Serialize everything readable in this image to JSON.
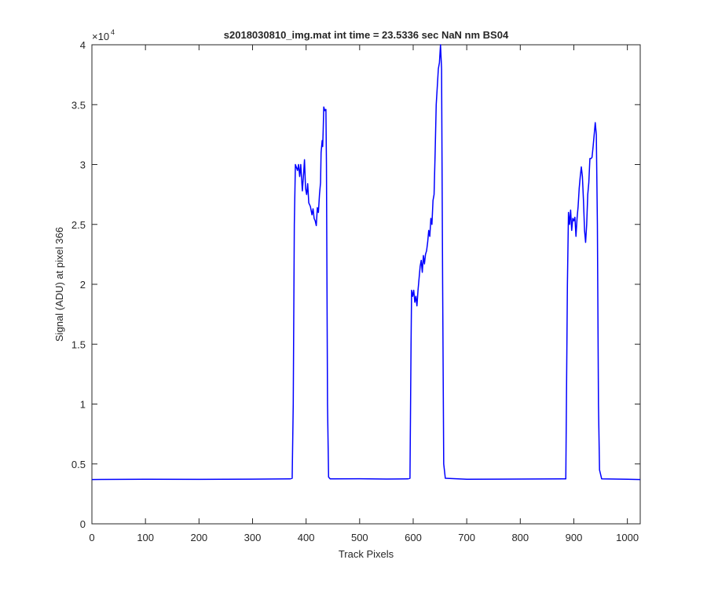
{
  "chart_data": {
    "type": "line",
    "title": "s2018030810_img.mat int time = 23.5336 sec  NaN nm BS04",
    "x_label": "Track Pixels",
    "y_label": "Signal (ADU) at pixel 366",
    "y_scale_label": "×10",
    "y_scale_power": "4",
    "color": "#0000ff",
    "x": [
      0,
      100,
      200,
      300,
      370,
      374,
      376,
      378,
      380,
      384,
      386,
      388,
      390,
      393,
      395,
      397,
      399,
      401,
      403,
      405,
      408,
      411,
      413,
      415,
      417,
      419,
      421,
      423,
      425,
      427,
      428,
      430,
      431,
      432,
      433,
      435,
      437,
      438,
      440,
      442,
      445,
      450,
      500,
      550,
      590,
      594,
      596,
      597,
      599,
      601,
      603,
      605,
      607,
      609,
      611,
      613,
      615,
      617,
      619,
      621,
      623,
      625,
      627,
      629,
      631,
      633,
      635,
      637,
      639,
      641,
      643,
      645,
      647,
      649,
      651,
      653,
      655,
      657,
      660,
      700,
      800,
      880,
      885,
      888,
      890,
      892,
      894,
      896,
      898,
      900,
      902,
      904,
      906,
      908,
      910,
      912,
      914,
      916,
      918,
      920,
      922,
      924,
      926,
      928,
      930,
      932,
      934,
      936,
      938,
      940,
      942,
      944,
      946,
      948,
      952,
      1000,
      1024
    ],
    "values": [
      3700,
      3720,
      3710,
      3730,
      3750,
      3800,
      10000,
      25000,
      30000,
      29500,
      30000,
      29000,
      30000,
      27800,
      29000,
      30400,
      28000,
      27500,
      28400,
      26800,
      26500,
      25800,
      26300,
      25500,
      25300,
      24900,
      26400,
      26000,
      27500,
      28500,
      31000,
      32000,
      31500,
      33000,
      34800,
      34500,
      34600,
      30000,
      10000,
      3900,
      3750,
      3750,
      3760,
      3740,
      3750,
      3800,
      15000,
      19500,
      19000,
      19500,
      18500,
      19000,
      18200,
      19500,
      20500,
      21500,
      22000,
      21000,
      22400,
      21700,
      22500,
      22800,
      23500,
      24500,
      24000,
      25500,
      25000,
      27000,
      27500,
      31000,
      35000,
      36500,
      38000,
      38500,
      40000,
      38000,
      20000,
      5000,
      3800,
      3720,
      3740,
      3750,
      3750,
      20000,
      26000,
      25000,
      26200,
      24500,
      25500,
      25300,
      25600,
      24000,
      25500,
      26500,
      28000,
      29000,
      29800,
      29000,
      27000,
      24500,
      23500,
      25000,
      27500,
      28500,
      30500,
      30500,
      30600,
      31500,
      32500,
      33500,
      32500,
      25000,
      10000,
      4500,
      3750,
      3720,
      3700
    ],
    "xlim": [
      0,
      1024
    ],
    "xticks": [
      0,
      100,
      200,
      300,
      400,
      500,
      600,
      700,
      800,
      900,
      1000
    ],
    "ylim": [
      0,
      40000
    ],
    "yticks": [
      {
        "value": 0,
        "label": "0"
      },
      {
        "value": 5000,
        "label": "0.5"
      },
      {
        "value": 10000,
        "label": "1"
      },
      {
        "value": 15000,
        "label": "1.5"
      },
      {
        "value": 20000,
        "label": "2"
      },
      {
        "value": 25000,
        "label": "2.5"
      },
      {
        "value": 30000,
        "label": "3"
      },
      {
        "value": 35000,
        "label": "3.5"
      },
      {
        "value": 40000,
        "label": "4"
      }
    ],
    "grid": false
  }
}
